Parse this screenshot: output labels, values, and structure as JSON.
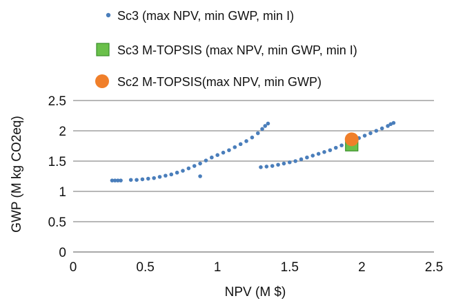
{
  "chart_data": {
    "type": "scatter",
    "xlabel": "NPV (M $)",
    "ylabel": "GWP (M kg CO2eq)",
    "xlim": [
      0,
      2.5
    ],
    "ylim": [
      0,
      2.5
    ],
    "xticks": [
      "0",
      "0.5",
      "1",
      "1.5",
      "2",
      "2.5"
    ],
    "yticks": [
      "0",
      "0.5",
      "1",
      "1.5",
      "2",
      "2.5"
    ],
    "grid": "horizontal",
    "legend_position": "top",
    "series": [
      {
        "name": "Sc3 (max NPV, min GWP, min I)",
        "marker": "dot",
        "color": "#4a7ebb",
        "points": [
          [
            0.27,
            1.18
          ],
          [
            0.29,
            1.18
          ],
          [
            0.31,
            1.18
          ],
          [
            0.33,
            1.18
          ],
          [
            0.4,
            1.19
          ],
          [
            0.44,
            1.19
          ],
          [
            0.48,
            1.2
          ],
          [
            0.52,
            1.21
          ],
          [
            0.56,
            1.22
          ],
          [
            0.6,
            1.24
          ],
          [
            0.64,
            1.26
          ],
          [
            0.68,
            1.28
          ],
          [
            0.72,
            1.31
          ],
          [
            0.76,
            1.34
          ],
          [
            0.8,
            1.38
          ],
          [
            0.84,
            1.42
          ],
          [
            0.88,
            1.46
          ],
          [
            0.92,
            1.51
          ],
          [
            0.96,
            1.56
          ],
          [
            1.0,
            1.6
          ],
          [
            1.04,
            1.64
          ],
          [
            1.08,
            1.68
          ],
          [
            1.12,
            1.73
          ],
          [
            1.16,
            1.78
          ],
          [
            1.2,
            1.83
          ],
          [
            1.24,
            1.89
          ],
          [
            1.28,
            1.96
          ],
          [
            1.31,
            2.03
          ],
          [
            1.33,
            2.08
          ],
          [
            1.35,
            2.12
          ],
          [
            0.88,
            1.25
          ],
          [
            1.3,
            1.4
          ],
          [
            1.34,
            1.41
          ],
          [
            1.38,
            1.42
          ],
          [
            1.42,
            1.44
          ],
          [
            1.46,
            1.46
          ],
          [
            1.5,
            1.48
          ],
          [
            1.54,
            1.5
          ],
          [
            1.58,
            1.53
          ],
          [
            1.62,
            1.56
          ],
          [
            1.66,
            1.59
          ],
          [
            1.7,
            1.62
          ],
          [
            1.74,
            1.65
          ],
          [
            1.78,
            1.68
          ],
          [
            1.82,
            1.72
          ],
          [
            1.86,
            1.76
          ],
          [
            1.9,
            1.8
          ],
          [
            1.94,
            1.84
          ],
          [
            1.98,
            1.88
          ],
          [
            2.02,
            1.92
          ],
          [
            2.06,
            1.96
          ],
          [
            2.1,
            2.0
          ],
          [
            2.14,
            2.04
          ],
          [
            2.18,
            2.08
          ],
          [
            2.2,
            2.11
          ],
          [
            2.22,
            2.13
          ]
        ]
      },
      {
        "name": "Sc3 M-TOPSIS (max NPV, min GWP, min I)",
        "marker": "square",
        "color": "#6ac04a",
        "edge": "#3a8f2a",
        "points": [
          [
            1.93,
            1.77
          ]
        ]
      },
      {
        "name": "Sc2 M-TOPSIS(max NPV, min GWP)",
        "marker": "circle",
        "color": "#f07f2a",
        "points": [
          [
            1.93,
            1.86
          ]
        ]
      }
    ]
  }
}
